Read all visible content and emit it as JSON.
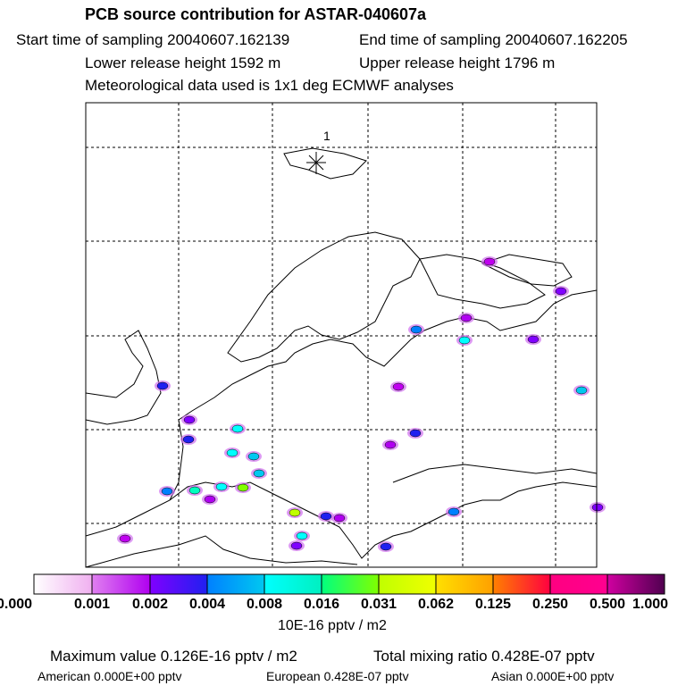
{
  "title": "PCB source contribution for ASTAR-040607a",
  "start": "Start time of sampling 20040607.162139",
  "end": "End time of sampling 20040607.162205",
  "lower": "Lower release height 1592 m",
  "upper": "Upper release height 1796 m",
  "met": "Meteorological data used is 1x1 deg ECMWF analyses",
  "marker_label": "1",
  "colorbar": {
    "ticks": [
      "0.000",
      "0.001",
      "0.002",
      "0.004",
      "0.008",
      "0.016",
      "0.031",
      "0.062",
      "0.125",
      "0.250",
      "0.500",
      "1.000"
    ],
    "unit": "10E-16 pptv / m2",
    "segments": [
      [
        "#ffffff",
        "#f0b0f0"
      ],
      [
        "#e080f0",
        "#b000f0"
      ],
      [
        "#8000ff",
        "#2020f0"
      ],
      [
        "#0080ff",
        "#00c8f0"
      ],
      [
        "#00ffff",
        "#00f0c0"
      ],
      [
        "#00ff80",
        "#80ff00"
      ],
      [
        "#c0ff00",
        "#f0ff00"
      ],
      [
        "#ffe000",
        "#ffa000"
      ],
      [
        "#ff8000",
        "#ff0040"
      ],
      [
        "#ff0080",
        "#ff0090"
      ],
      [
        "#d000a0",
        "#500050"
      ]
    ]
  },
  "stats": {
    "max": "Maximum value  0.126E-16 pptv / m2",
    "total": "Total mixing ratio  0.428E-07 pptv",
    "american": "American  0.000E+00 pptv",
    "european": "European  0.428E-07 pptv",
    "asian": "Asian  0.000E+00 pptv"
  }
}
